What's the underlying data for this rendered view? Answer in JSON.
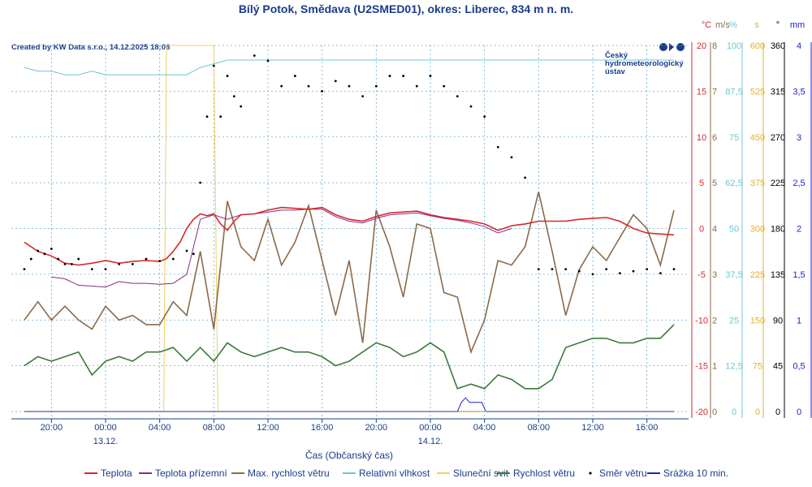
{
  "title": "Bílý Potok, Smědava (U2SMED01), okres: Liberec, 834 m n. m.",
  "credit": "Created by KW Data s.r.o., 14.12.2025 18:08",
  "logo": {
    "line1": "Český",
    "line2": "hydrometeorologický",
    "line3": "ústav"
  },
  "colors": {
    "teplota": "#d42a2a",
    "teplota_prizemni": "#8a2a8a",
    "max_rychlost": "#8a6a4a",
    "rel_vlhkost": "#6fc4d4",
    "slunecni_svit": "#f0d060",
    "rychlost": "#3a7a3a",
    "smer": "#000000",
    "srazka": "#2020d0",
    "grid": "#6aaad0"
  },
  "chart_data": {
    "type": "line",
    "xlabel": "Čas (Občanský čas)",
    "x_ticks": [
      "20:00",
      "00:00",
      "04:00",
      "08:00",
      "12:00",
      "16:00",
      "20:00",
      "00:00",
      "04:00",
      "08:00",
      "12:00",
      "16:00"
    ],
    "x_dates": [
      {
        "under": "00:00",
        "index": 1,
        "label": "13.12."
      },
      {
        "under": "00:00",
        "index": 7,
        "label": "14.12."
      }
    ],
    "x_range_hours": [
      -2.0,
      46.0
    ],
    "axes": [
      {
        "id": "temp",
        "unit": "°C",
        "color": "#d42a2a",
        "range": [
          -20,
          20
        ],
        "ticks": [
          "20",
          "15",
          "10",
          "5",
          "0",
          "-5",
          "-10",
          "-15",
          "-20"
        ]
      },
      {
        "id": "wind",
        "unit": "m/s",
        "color": "#8a6a4a",
        "range": [
          0,
          8
        ],
        "ticks": [
          "8",
          "7",
          "6",
          "5",
          "4",
          "3",
          "2",
          "1",
          "0"
        ]
      },
      {
        "id": "hum",
        "unit": "%",
        "color": "#6fc4d4",
        "range": [
          0,
          100
        ],
        "ticks": [
          "100",
          "87,5",
          "75",
          "62,5",
          "50",
          "37,5",
          "25",
          "12,5",
          "0"
        ]
      },
      {
        "id": "sun",
        "unit": "s",
        "color": "#e0b030",
        "range": [
          0,
          600
        ],
        "ticks": [
          "600",
          "525",
          "450",
          "375",
          "300",
          "225",
          "150",
          "75",
          "0"
        ]
      },
      {
        "id": "dir",
        "unit": "°",
        "color": "#000000",
        "range": [
          0,
          360
        ],
        "ticks": [
          "360",
          "315",
          "270",
          "225",
          "180",
          "135",
          "90",
          "45",
          "0"
        ]
      },
      {
        "id": "rain",
        "unit": "mm",
        "color": "#2020d0",
        "range": [
          0,
          4
        ],
        "ticks": [
          "4",
          "3,5",
          "3",
          "2,5",
          "2",
          "1,5",
          "1",
          "0,5",
          "0"
        ]
      }
    ],
    "legend": [
      "Teplota",
      "Teplota přízemní",
      "Max. rychlost větru",
      "Relativní vlhkost",
      "Sluneční svit",
      "Rychlost větru",
      "Směr větru",
      "Srážka 10 min."
    ],
    "series": [
      {
        "name": "Teplota",
        "axis": "temp",
        "x": [
          -2,
          -1,
          0,
          1,
          2,
          3,
          4,
          5,
          6,
          7,
          8,
          8.5,
          9,
          9.5,
          10,
          10.5,
          11,
          11.5,
          12,
          12.5,
          13,
          13.5,
          14,
          15,
          16,
          17,
          18,
          19,
          20,
          21,
          22,
          23,
          24,
          25,
          26,
          27,
          28,
          29,
          30,
          31,
          32,
          33,
          34,
          35,
          36,
          37,
          38,
          39,
          40,
          41,
          42,
          43,
          44,
          45,
          46
        ],
        "y": [
          -1.5,
          -2.5,
          -3,
          -3.8,
          -4,
          -3.8,
          -3.5,
          -3.8,
          -3.6,
          -3.5,
          -3.6,
          -3.3,
          -2.5,
          -1.5,
          0,
          1,
          1.6,
          1.4,
          1.6,
          0.5,
          -0.2,
          0.8,
          1.5,
          1.6,
          2,
          2.3,
          2.2,
          2.1,
          2.3,
          1.5,
          1,
          0.8,
          1.3,
          1.7,
          1.8,
          1.9,
          1.5,
          1.2,
          1,
          0.8,
          0.5,
          -0.2,
          0.3,
          0.5,
          0.8,
          0.8,
          0.8,
          1.0,
          1.1,
          1.2,
          0.8,
          0,
          -0.5,
          -0.6,
          -0.7
        ]
      },
      {
        "name": "Teplota přízemní",
        "axis": "temp",
        "x": [
          0,
          1,
          2,
          3,
          4,
          5,
          6,
          7,
          8,
          9,
          10,
          11,
          12,
          13,
          14,
          15,
          16,
          17,
          18,
          19,
          20,
          21,
          22,
          23,
          24,
          25,
          26,
          27,
          28,
          29,
          30,
          31,
          32,
          33,
          34
        ],
        "y": [
          -5.3,
          -5.5,
          -6.2,
          -6.3,
          -6.4,
          -5.8,
          -6.0,
          -6.0,
          -6.1,
          -6.0,
          -5.0,
          1.0,
          1.5,
          1.0,
          1.5,
          1.6,
          1.8,
          2.0,
          2.0,
          2.1,
          2.1,
          1.3,
          0.8,
          0.6,
          1.1,
          1.5,
          1.6,
          1.7,
          1.4,
          1.1,
          0.9,
          0.6,
          0.2,
          -0.5,
          0.0
        ]
      },
      {
        "name": "Max. rychlost větru",
        "axis": "wind",
        "x": [
          -2,
          -1,
          0,
          1,
          2,
          3,
          4,
          5,
          6,
          7,
          8,
          9,
          10,
          11,
          12,
          13,
          14,
          15,
          16,
          17,
          18,
          19,
          20,
          21,
          22,
          23,
          24,
          25,
          26,
          27,
          28,
          29,
          30,
          31,
          32,
          33,
          34,
          35,
          36,
          37,
          38,
          39,
          40,
          41,
          42,
          43,
          44,
          45,
          46
        ],
        "y": [
          2,
          2.4,
          2.0,
          2.3,
          2.0,
          1.8,
          2.3,
          2.0,
          2.1,
          1.9,
          1.9,
          2.4,
          2.1,
          3.5,
          1.8,
          4.6,
          3.6,
          3.3,
          4.2,
          3.2,
          3.7,
          4.5,
          3.3,
          2.1,
          3.3,
          1.5,
          4.4,
          3.6,
          2.5,
          4.1,
          4.0,
          2.6,
          2.5,
          1.3,
          2.0,
          3.3,
          3.2,
          3.6,
          4.8,
          3.5,
          2.1,
          3.1,
          3.6,
          3.3,
          3.8,
          4.3,
          4.0,
          3.2,
          4.4
        ]
      },
      {
        "name": "Relativní vlhkost",
        "axis": "hum",
        "x": [
          -2,
          -1,
          0,
          1,
          2,
          3,
          4,
          5,
          6,
          7,
          7.5,
          8,
          8.5,
          9,
          10,
          11,
          12,
          13,
          14,
          15,
          16,
          17,
          18,
          19,
          20,
          21,
          22,
          23,
          24,
          25,
          26,
          27,
          28,
          29,
          30,
          31,
          32,
          33,
          34,
          35,
          36,
          37,
          38,
          39,
          40,
          41,
          42,
          43,
          44,
          45,
          46
        ],
        "y": [
          94,
          93,
          93,
          92,
          92,
          93,
          92,
          92,
          92,
          92,
          92,
          92,
          92,
          92,
          92,
          94,
          95,
          96,
          96,
          96,
          96,
          96,
          96,
          96,
          96,
          96,
          96,
          96,
          96,
          96,
          96,
          96,
          96,
          96,
          96,
          96,
          96,
          96,
          96,
          96,
          96,
          96,
          96,
          96,
          96,
          96,
          96,
          96,
          96,
          96,
          96
        ]
      },
      {
        "name": "Sluneční svit",
        "axis": "sun",
        "x": [
          -2,
          8.3,
          8.5,
          12,
          12.3,
          12.8,
          46
        ],
        "y": [
          0,
          0,
          600,
          600,
          0,
          0,
          0
        ]
      },
      {
        "name": "Rychlost větru",
        "axis": "wind",
        "x": [
          -2,
          -1,
          0,
          1,
          2,
          3,
          4,
          5,
          6,
          7,
          8,
          9,
          10,
          11,
          12,
          13,
          14,
          15,
          16,
          17,
          18,
          19,
          20,
          21,
          22,
          23,
          24,
          25,
          26,
          27,
          28,
          29,
          30,
          31,
          32,
          33,
          34,
          35,
          36,
          37,
          38,
          39,
          40,
          41,
          42,
          43,
          44,
          45,
          46
        ],
        "y": [
          1,
          1.2,
          1.1,
          1.2,
          1.3,
          0.8,
          1.1,
          1.2,
          1.1,
          1.3,
          1.3,
          1.4,
          1.1,
          1.4,
          1.1,
          1.5,
          1.3,
          1.2,
          1.3,
          1.4,
          1.3,
          1.3,
          1.2,
          1.0,
          1.1,
          1.3,
          1.5,
          1.4,
          1.2,
          1.3,
          1.5,
          1.3,
          0.5,
          0.6,
          0.5,
          0.8,
          0.7,
          0.5,
          0.5,
          0.7,
          1.4,
          1.5,
          1.6,
          1.6,
          1.5,
          1.5,
          1.6,
          1.6,
          1.9
        ]
      },
      {
        "name": "Směr větru",
        "axis": "dir",
        "x": [
          -2,
          -1.5,
          -1,
          -0.5,
          0,
          0.5,
          1,
          1.5,
          2,
          3,
          4,
          5,
          6,
          7,
          8,
          9,
          10,
          10.5,
          11,
          11.5,
          12,
          12.5,
          13,
          13.5,
          14,
          15,
          16,
          17,
          18,
          19,
          20,
          21,
          22,
          23,
          24,
          25,
          26,
          27,
          28,
          29,
          30,
          31,
          32,
          33,
          34,
          35,
          36,
          37,
          38,
          39,
          40,
          41,
          42,
          43,
          44,
          45,
          46
        ],
        "y": [
          140,
          150,
          158,
          155,
          160,
          150,
          145,
          145,
          150,
          140,
          140,
          145,
          145,
          150,
          148,
          150,
          158,
          155,
          225,
          290,
          340,
          290,
          330,
          310,
          300,
          350,
          345,
          320,
          330,
          320,
          315,
          325,
          320,
          310,
          320,
          330,
          330,
          320,
          330,
          320,
          310,
          300,
          290,
          260,
          250,
          230,
          140,
          140,
          140,
          138,
          135,
          140,
          136,
          138,
          140,
          136,
          140
        ]
      },
      {
        "name": "Srážka 10 min.",
        "axis": "rain",
        "x": [
          -2,
          30.0,
          30.3,
          30.6,
          30.9,
          31.2,
          31.5,
          31.8,
          32.1,
          46
        ],
        "y": [
          0,
          0,
          0.1,
          0.15,
          0.1,
          0.1,
          0.1,
          0.1,
          0,
          0
        ]
      }
    ]
  }
}
